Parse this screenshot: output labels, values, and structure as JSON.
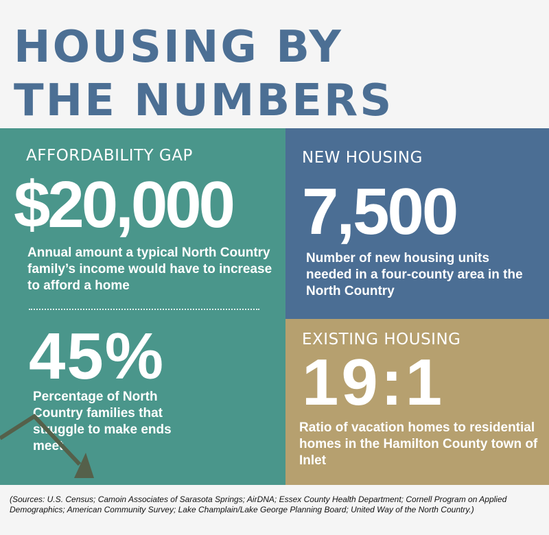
{
  "title_line1": "HOUSING BY",
  "title_line2": "THE NUMBERS",
  "affordability": {
    "heading": "AFFORDABILITY GAP",
    "value": "$20,000",
    "description": "Annual amount a typical North Country family’s income would have to increase to afford a home"
  },
  "struggle": {
    "value": "45%",
    "description": "Percentage of North Country families that struggle to make ends meet"
  },
  "new_housing": {
    "heading": "NEW HOUSING",
    "value": "7,500",
    "description": "Number of new housing units needed in a four-county area in the North Country"
  },
  "existing_housing": {
    "heading": "EXISTING HOUSING",
    "value": "19:1",
    "description": "Ratio of vacation homes to residential homes in the Hamilton County town of Inlet"
  },
  "sources": "(Sources: U.S. Census; Camoin Associates of Sarasota Springs; AirDNA; Essex County Health Department; Cornell Program on Applied Demographics; American Community Survey; Lake Champlain/Lake George Planning Board; United Way of the North Country.)",
  "colors": {
    "title": "#4c6f94",
    "teal": "#4a968b",
    "blue": "#4b6e94",
    "tan": "#b6a06f",
    "arrow": "#55604a"
  },
  "icons": [
    "downward-trend-arrow-icon"
  ]
}
